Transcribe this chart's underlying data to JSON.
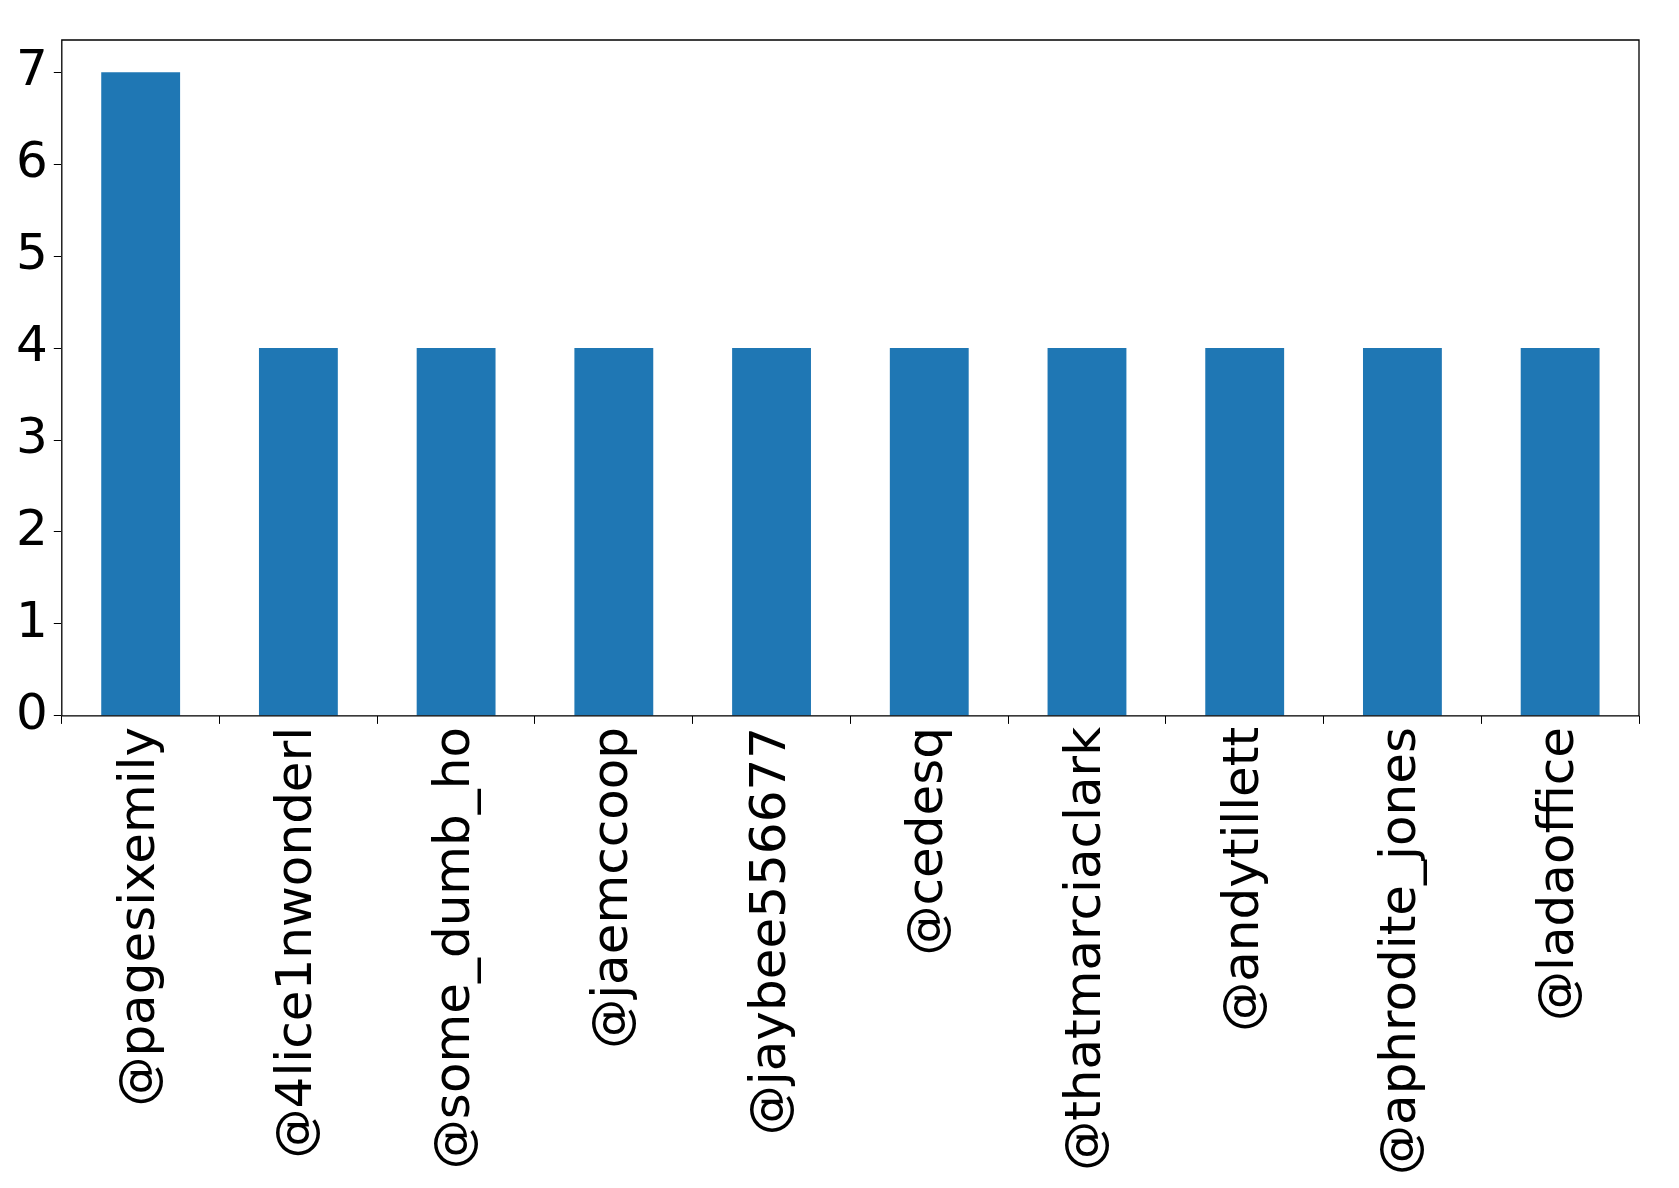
{
  "chart_data": {
    "type": "bar",
    "categories": [
      "@pagesixemily",
      "@4lice1nwonderl",
      "@some_dumb_ho",
      "@jaemccoop",
      "@jaybee556677",
      "@cedesq",
      "@thatmarciaclark",
      "@andytillett",
      "@aphrodite_jones",
      "@ladaoffice"
    ],
    "values": [
      7,
      4,
      4,
      4,
      4,
      4,
      4,
      4,
      4,
      4
    ],
    "color": "#1f77b4",
    "ylim": [
      0,
      7.35
    ],
    "yticks": [
      0,
      1,
      2,
      3,
      4,
      5,
      6,
      7
    ],
    "grid": false,
    "legend": false
  }
}
